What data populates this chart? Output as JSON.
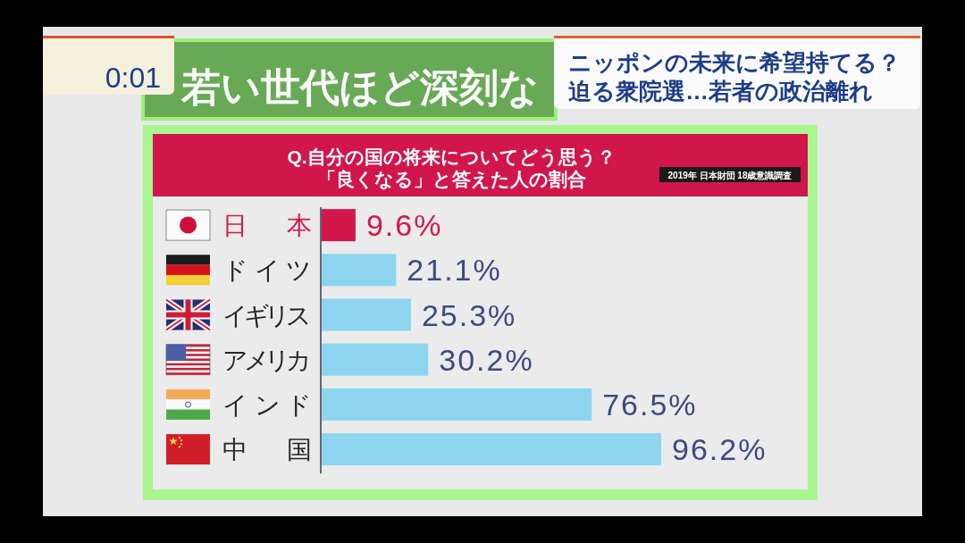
{
  "chart_data": {
    "type": "bar",
    "orientation": "horizontal",
    "title": "Q.自分の国の将来についてどう思う？",
    "subtitle": "「良くなる」と答えた人の割合",
    "categories": [
      "日　本",
      "ドイツ",
      "イギリス",
      "アメリカ",
      "インド",
      "中　国"
    ],
    "values": [
      9.6,
      21.1,
      25.3,
      30.2,
      76.5,
      96.2
    ],
    "colors": [
      "#d4174b",
      "#8dd5ee",
      "#8dd5ee",
      "#8dd5ee",
      "#8dd5ee",
      "#8dd5ee"
    ],
    "value_labels": [
      "9.6%",
      "21.1%",
      "25.3%",
      "30.2%",
      "76.5%",
      "96.2%"
    ],
    "annotations": [
      "2019年 日本財団 18歳意識調査",
      "若い世代ほど深刻な",
      "ニッポンの未来に希望持てる？",
      "迫る衆院選…若者の政治離れ",
      "0:01"
    ]
  }
}
